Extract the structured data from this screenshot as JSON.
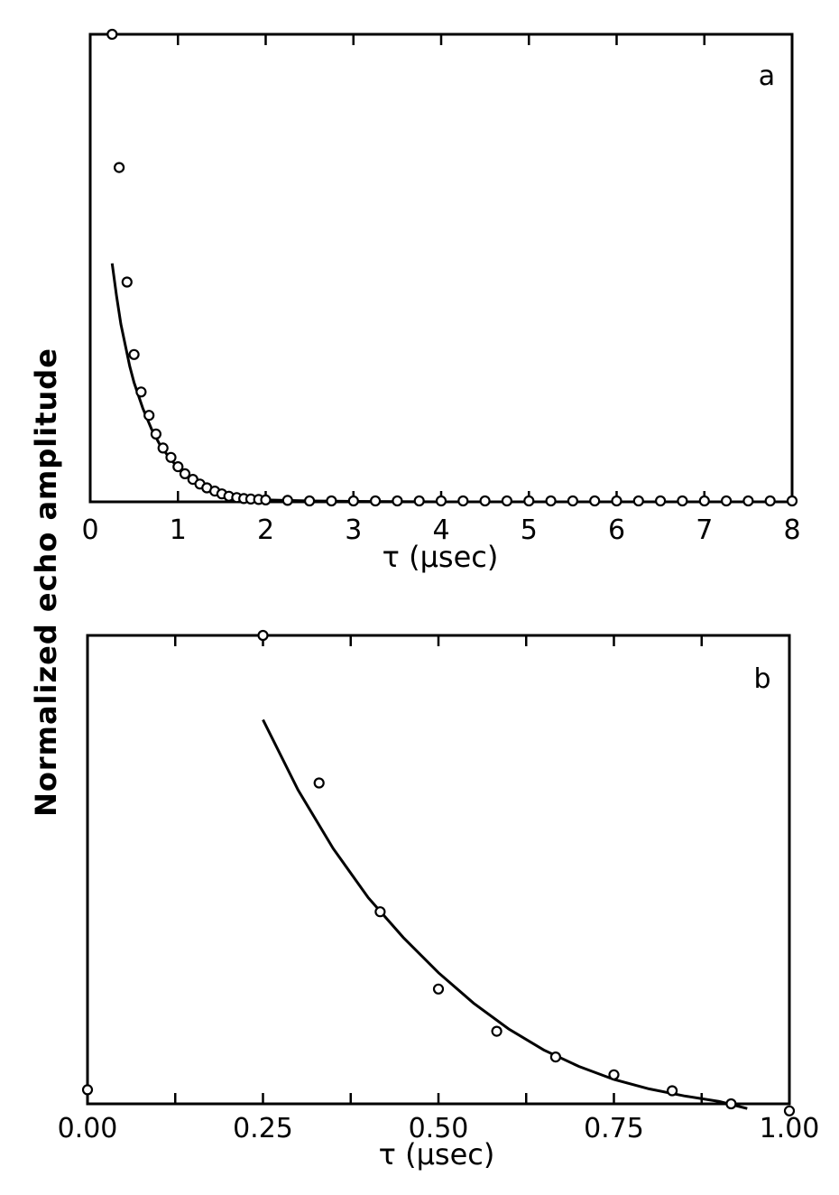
{
  "ylabel": "Normalized echo amplitude",
  "chart_data": [
    {
      "type": "scatter",
      "panel_label": "a",
      "xlabel": "τ (μsec)",
      "ylabel": "Normalized echo amplitude",
      "xlim": [
        0,
        8
      ],
      "ylim": [
        0,
        1
      ],
      "xticks": [
        0,
        1,
        2,
        3,
        4,
        5,
        6,
        7,
        8
      ],
      "xtick_labels": [
        "0",
        "1",
        "2",
        "3",
        "4",
        "5",
        "6",
        "7",
        "8"
      ],
      "show_yticks": false,
      "grid": false,
      "series": [
        {
          "kind": "points",
          "marker": "open-circle",
          "x": [
            0.25,
            0.33,
            0.42,
            0.5,
            0.58,
            0.67,
            0.75,
            0.83,
            0.92,
            1.0,
            1.08,
            1.17,
            1.25,
            1.33,
            1.42,
            1.5,
            1.58,
            1.67,
            1.75,
            1.83,
            1.92,
            2.0,
            2.25,
            2.5,
            2.75,
            3.0,
            3.25,
            3.5,
            3.75,
            4.0,
            4.25,
            4.5,
            4.75,
            5.0,
            5.25,
            5.5,
            5.75,
            6.0,
            6.25,
            6.5,
            6.75,
            7.0,
            7.25,
            7.5,
            7.75,
            8.0
          ],
          "y": [
            1.0,
            0.715,
            0.47,
            0.315,
            0.235,
            0.185,
            0.145,
            0.115,
            0.095,
            0.075,
            0.06,
            0.048,
            0.038,
            0.03,
            0.023,
            0.017,
            0.012,
            0.009,
            0.007,
            0.006,
            0.005,
            0.004,
            0.003,
            0.002,
            0.002,
            0.002,
            0.002,
            0.002,
            0.002,
            0.002,
            0.002,
            0.002,
            0.002,
            0.002,
            0.002,
            0.002,
            0.002,
            0.002,
            0.002,
            0.002,
            0.002,
            0.002,
            0.002,
            0.002,
            0.002,
            0.002
          ]
        },
        {
          "kind": "line",
          "x": [
            0.25,
            0.3,
            0.35,
            0.4,
            0.45,
            0.5,
            0.6,
            0.7,
            0.8,
            0.9,
            1.0,
            1.1,
            1.2,
            1.3,
            1.4,
            1.5,
            1.6,
            1.7,
            1.8,
            1.9,
            2.0,
            2.5,
            3.0,
            4.0,
            5.0,
            6.0,
            7.0,
            8.0
          ],
          "y": [
            0.51,
            0.44,
            0.38,
            0.335,
            0.29,
            0.255,
            0.2,
            0.155,
            0.12,
            0.095,
            0.073,
            0.057,
            0.044,
            0.034,
            0.026,
            0.02,
            0.015,
            0.011,
            0.008,
            0.006,
            0.004,
            0.002,
            0.001,
            0.0,
            0.0,
            0.0,
            0.0,
            0.0
          ]
        }
      ]
    },
    {
      "type": "scatter",
      "panel_label": "b",
      "xlabel": "τ (μsec)",
      "ylabel": "Normalized echo amplitude",
      "xlim": [
        0.0,
        1.0
      ],
      "ylim": [
        0,
        1
      ],
      "xticks": [
        0.0,
        0.125,
        0.25,
        0.375,
        0.5,
        0.625,
        0.75,
        0.875,
        1.0
      ],
      "xtick_labels": [
        "0.00",
        "",
        "0.25",
        "",
        "0.50",
        "",
        "0.75",
        "",
        "1.00"
      ],
      "show_yticks": false,
      "grid": false,
      "series": [
        {
          "kind": "points",
          "marker": "open-circle",
          "x": [
            0.0,
            0.25,
            0.33,
            0.417,
            0.5,
            0.583,
            0.667,
            0.75,
            0.833,
            0.917,
            1.0
          ],
          "y": [
            0.03,
            1.0,
            0.685,
            0.41,
            0.245,
            0.155,
            0.1,
            0.062,
            0.028,
            0.0,
            -0.015
          ]
        },
        {
          "kind": "line",
          "x": [
            0.25,
            0.3,
            0.35,
            0.4,
            0.45,
            0.5,
            0.55,
            0.6,
            0.65,
            0.7,
            0.75,
            0.8,
            0.85,
            0.9,
            0.94
          ],
          "y": [
            0.82,
            0.67,
            0.545,
            0.44,
            0.355,
            0.28,
            0.215,
            0.16,
            0.115,
            0.08,
            0.052,
            0.032,
            0.017,
            0.005,
            -0.01
          ]
        }
      ]
    }
  ]
}
